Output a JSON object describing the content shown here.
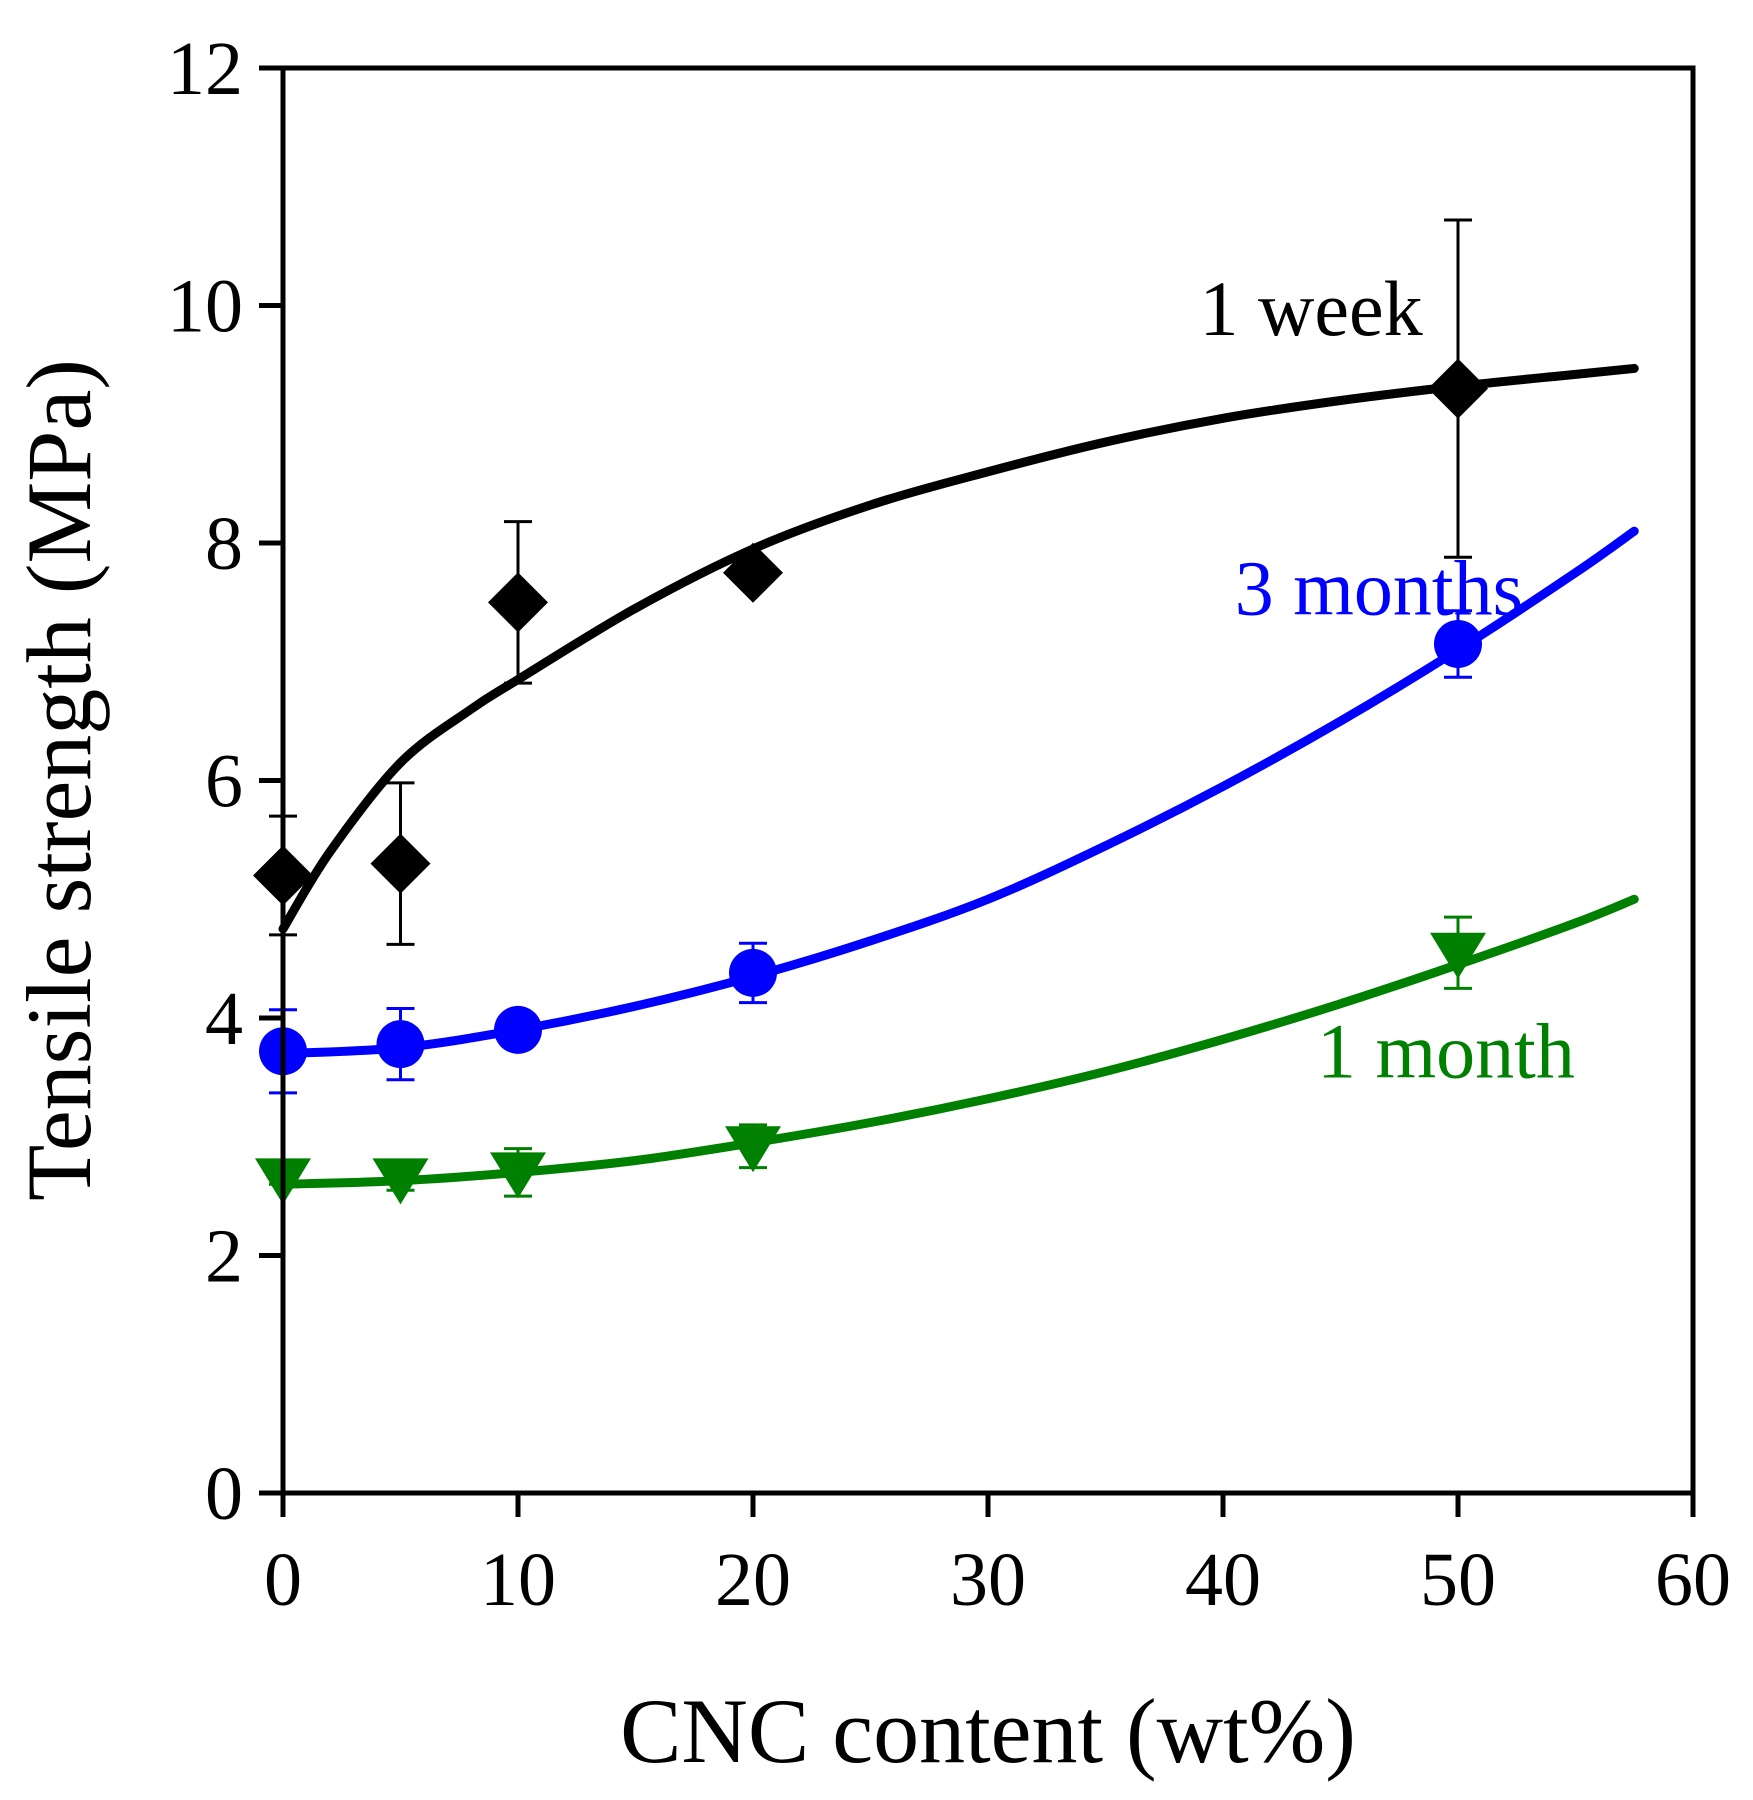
{
  "chart_data": {
    "type": "scatter",
    "title": "",
    "xlabel": "CNC content (wt%)",
    "ylabel": "Tensile strength (MPa)",
    "xlim": [
      0,
      60
    ],
    "ylim": [
      0,
      12
    ],
    "x_ticks": [
      0,
      10,
      20,
      30,
      40,
      50,
      60
    ],
    "y_ticks": [
      0,
      2,
      4,
      6,
      8,
      10,
      12
    ],
    "grid": false,
    "series": [
      {
        "name": "1 week",
        "color": "#000000",
        "marker": "diamond",
        "x": [
          0,
          5,
          10,
          20,
          50
        ],
        "y": [
          5.2,
          5.3,
          7.5,
          7.75,
          9.3
        ],
        "error": [
          0.5,
          0.68,
          0.68,
          0.1,
          1.42
        ],
        "fit_x": [
          0,
          2,
          5,
          8,
          10,
          15,
          20,
          25,
          30,
          35,
          40,
          45,
          50,
          55,
          57.5
        ],
        "fit_y": [
          4.75,
          5.4,
          6.15,
          6.6,
          6.85,
          7.45,
          7.95,
          8.32,
          8.6,
          8.85,
          9.05,
          9.2,
          9.32,
          9.42,
          9.47
        ]
      },
      {
        "name": "3 months",
        "color": "#0000ff",
        "marker": "circle",
        "x": [
          0,
          5,
          10,
          20,
          50
        ],
        "y": [
          3.72,
          3.78,
          3.9,
          4.38,
          7.15
        ],
        "error": [
          0.35,
          0.3,
          0.05,
          0.25,
          0.28
        ],
        "fit_x": [
          0,
          5,
          10,
          15,
          20,
          25,
          30,
          35,
          40,
          45,
          50,
          55,
          57.5
        ],
        "fit_y": [
          3.7,
          3.75,
          3.9,
          4.1,
          4.35,
          4.65,
          5.0,
          5.45,
          5.95,
          6.5,
          7.1,
          7.75,
          8.1
        ]
      },
      {
        "name": "1 month",
        "color": "#008000",
        "marker": "triangle-down",
        "x": [
          0,
          5,
          10,
          20,
          50
        ],
        "y": [
          2.65,
          2.65,
          2.7,
          2.92,
          4.55
        ],
        "error": [
          0.05,
          0.1,
          0.2,
          0.18,
          0.3
        ],
        "fit_x": [
          0,
          5,
          10,
          15,
          20,
          25,
          30,
          35,
          40,
          45,
          50,
          55,
          57.5
        ],
        "fit_y": [
          2.6,
          2.63,
          2.7,
          2.8,
          2.95,
          3.12,
          3.32,
          3.55,
          3.82,
          4.12,
          4.45,
          4.8,
          5.0
        ]
      }
    ],
    "annotations": [
      {
        "text": "1 week",
        "color": "#000000",
        "x": 39,
        "y": 9.75
      },
      {
        "text": "3 months",
        "color": "#0000ff",
        "x": 40.5,
        "y": 7.4
      },
      {
        "text": "1 month",
        "color": "#008000",
        "x": 44,
        "y": 3.5
      }
    ]
  }
}
